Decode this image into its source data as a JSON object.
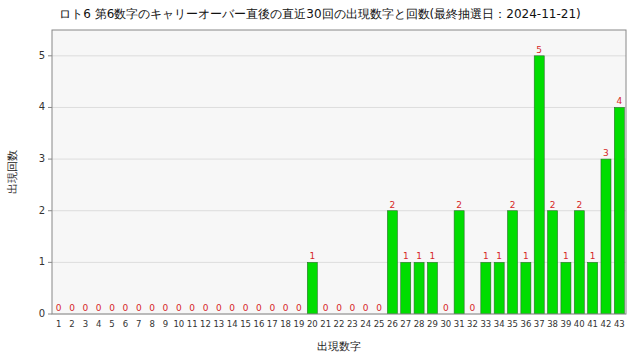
{
  "chart_data": {
    "type": "bar",
    "title": "ロト6  第6数字のキャリーオーバー直後の直近30回の出現数字と回数(最終抽選日：2024-11-21)",
    "x_label": "出現数字",
    "y_label": "出現回数",
    "categories": [
      "1",
      "2",
      "3",
      "4",
      "5",
      "6",
      "7",
      "8",
      "9",
      "10",
      "11",
      "12",
      "13",
      "14",
      "15",
      "16",
      "17",
      "18",
      "19",
      "20",
      "21",
      "22",
      "23",
      "24",
      "25",
      "26",
      "27",
      "28",
      "29",
      "30",
      "31",
      "32",
      "33",
      "34",
      "35",
      "36",
      "37",
      "38",
      "39",
      "40",
      "41",
      "42",
      "43"
    ],
    "values": [
      0,
      0,
      0,
      0,
      0,
      0,
      0,
      0,
      0,
      0,
      0,
      0,
      0,
      0,
      0,
      0,
      0,
      0,
      0,
      1,
      0,
      0,
      0,
      0,
      0,
      2,
      1,
      1,
      1,
      0,
      2,
      0,
      1,
      1,
      2,
      1,
      5,
      2,
      1,
      2,
      1,
      3,
      4
    ],
    "color": "#00dd00",
    "ylim": [
      0,
      5.5
    ],
    "yticks": [
      0,
      1,
      2,
      3,
      4,
      5
    ],
    "grid": true,
    "data_labels": true
  }
}
